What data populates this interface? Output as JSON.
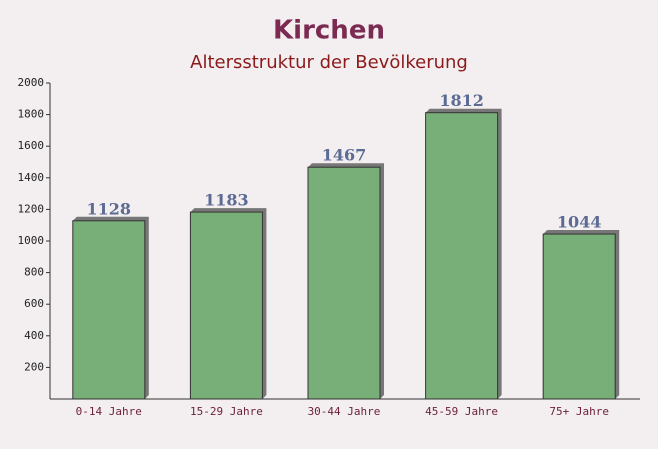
{
  "chart_data": {
    "type": "bar",
    "title": "Kirchen",
    "subtitle": "Altersstruktur der Bevölkerung",
    "categories": [
      "0-14 Jahre",
      "15-29 Jahre",
      "30-44 Jahre",
      "45-59 Jahre",
      "75+ Jahre"
    ],
    "values": [
      1128,
      1183,
      1467,
      1812,
      1044
    ],
    "color": "#6aa66a",
    "ylim": [
      0,
      2000
    ],
    "yticks": [
      200,
      400,
      600,
      800,
      1000,
      1200,
      1400,
      1600,
      1800,
      2000
    ],
    "grid": false
  }
}
